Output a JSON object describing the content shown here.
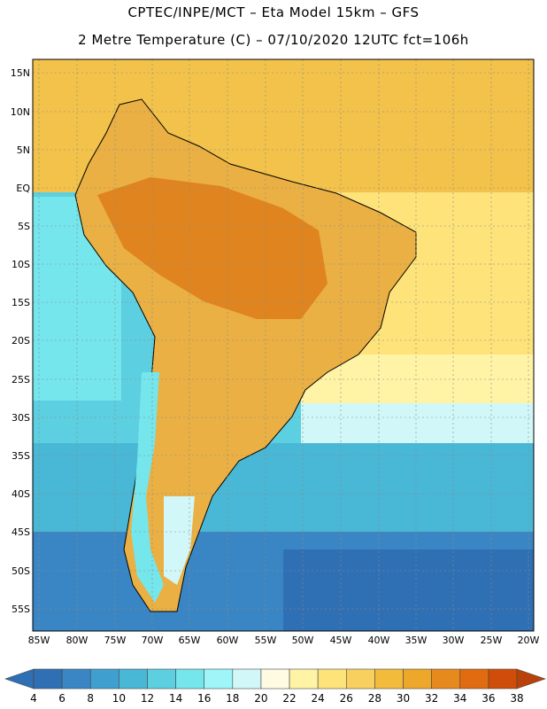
{
  "header": {
    "line1": "CPTEC/INPE/MCT –  Eta Model 15km – GFS",
    "line2": "2 Metre Temperature (C) – 07/10/2020 12UTC fct=106h"
  },
  "map": {
    "lat_labels": [
      "15N",
      "10N",
      "5N",
      "EQ",
      "5S",
      "10S",
      "15S",
      "20S",
      "25S",
      "30S",
      "35S",
      "40S",
      "45S",
      "50S",
      "55S"
    ],
    "lon_labels": [
      "85W",
      "80W",
      "75W",
      "70W",
      "65W",
      "60W",
      "55W",
      "50W",
      "45W",
      "40W",
      "35W",
      "30W",
      "25W",
      "20W"
    ]
  },
  "colorbar": {
    "labels": [
      "4",
      "6",
      "8",
      "10",
      "12",
      "14",
      "16",
      "18",
      "20",
      "22",
      "24",
      "26",
      "28",
      "30",
      "32",
      "34",
      "36",
      "38"
    ],
    "colors": [
      "#2f6fb4",
      "#3a86c4",
      "#3fa0cf",
      "#49b7d6",
      "#5ccfe0",
      "#74e6ec",
      "#9ef6f8",
      "#d2f7f8",
      "#fffbe2",
      "#fff3a6",
      "#fde37a",
      "#f8d060",
      "#f2bb3c",
      "#eda72a",
      "#e78a1e",
      "#e06b10",
      "#cf4d08"
    ]
  }
}
